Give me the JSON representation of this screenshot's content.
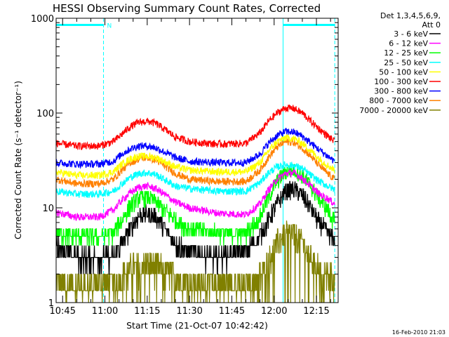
{
  "chart_data": {
    "type": "line",
    "title": "HESSI Observing Summary Count Rates, Corrected",
    "xlabel": "Start Time (21-Oct-07 10:42:42)",
    "ylabel": "Corrected Count Rate (s⁻¹ detector⁻¹)",
    "y_scale": "log",
    "ylim": [
      1,
      1000
    ],
    "xlim": [
      "10:42:42",
      "12:22:42"
    ],
    "x_ticks": [
      "10:45",
      "11:00",
      "11:15",
      "11:30",
      "11:45",
      "12:00",
      "12:15"
    ],
    "y_ticks": [
      "1",
      "10",
      "100",
      "1000"
    ],
    "grid": false,
    "legend_position": "right",
    "legend_header": [
      "Det 1,3,4,5,6,9,",
      "Att 0"
    ],
    "timestamp": "16-Feb-2010 21:03",
    "annotations": {
      "night_label": "N",
      "night_intervals": [
        [
          "10:42:42",
          "10:59:30"
        ],
        [
          "12:03:10",
          "12:21:30"
        ]
      ],
      "marker_times": [
        "10:42:42",
        "10:59:30",
        "12:03:10",
        "12:21:30"
      ],
      "bar_value": 850
    },
    "series": [
      {
        "name": "3 - 6 keV",
        "color": "#000000",
        "x": [
          "10:42:42",
          "10:50",
          "10:58",
          "11:03",
          "11:06",
          "11:09",
          "11:12",
          "11:15",
          "11:18",
          "11:21",
          "11:25",
          "11:30",
          "11:40",
          "11:50",
          "11:55",
          "11:58",
          "12:01",
          "12:04",
          "12:07",
          "12:10",
          "12:13",
          "12:16",
          "12:19",
          "12:21:30"
        ],
        "values": [
          4,
          3,
          3,
          3,
          4.2,
          6,
          8.3,
          8.8,
          8,
          6.2,
          4.3,
          3.4,
          3,
          3.5,
          5,
          7.5,
          11,
          15,
          16,
          13.5,
          10,
          7,
          5.5,
          4.5
        ]
      },
      {
        "name": "6 - 12 keV",
        "color": "#ff00ff",
        "x": [
          "10:42:42",
          "10:50",
          "10:58",
          "11:03",
          "11:06",
          "11:09",
          "11:12",
          "11:15",
          "11:18",
          "11:21",
          "11:25",
          "11:30",
          "11:40",
          "11:50",
          "11:55",
          "11:58",
          "12:01",
          "12:04",
          "12:07",
          "12:10",
          "12:13",
          "12:16",
          "12:19",
          "12:21:30"
        ],
        "values": [
          9,
          8,
          8,
          9.5,
          12,
          14.5,
          16.5,
          17,
          16,
          14,
          11.5,
          10,
          8.8,
          8.5,
          11,
          15.5,
          20,
          23,
          23.5,
          20.5,
          17,
          14,
          12.5,
          11
        ]
      },
      {
        "name": "12 - 25 keV",
        "color": "#00ff00",
        "x": [
          "10:42:42",
          "10:50",
          "10:58",
          "11:03",
          "11:06",
          "11:09",
          "11:12",
          "11:15",
          "11:18",
          "11:21",
          "11:25",
          "11:30",
          "11:40",
          "11:50",
          "11:55",
          "11:58",
          "12:01",
          "12:04",
          "12:07",
          "12:10",
          "12:13",
          "12:16",
          "12:19",
          "12:21:30"
        ],
        "values": [
          5.5,
          5,
          5,
          5.5,
          7.5,
          10.5,
          12.8,
          13,
          11.8,
          9.5,
          7.5,
          6,
          5.5,
          5.3,
          8,
          13,
          19,
          24,
          25,
          22,
          17,
          12.5,
          9.5,
          7
        ]
      },
      {
        "name": "25 - 50 keV",
        "color": "#00ffff",
        "x": [
          "10:42:42",
          "10:50",
          "10:58",
          "11:03",
          "11:06",
          "11:09",
          "11:12",
          "11:15",
          "11:18",
          "11:21",
          "11:25",
          "11:30",
          "11:40",
          "11:50",
          "11:55",
          "11:58",
          "12:01",
          "12:04",
          "12:07",
          "12:10",
          "12:13",
          "12:16",
          "12:19",
          "12:21:30"
        ],
        "values": [
          15,
          14,
          14,
          15,
          18,
          21,
          23,
          23.5,
          22.5,
          20,
          17,
          16,
          15,
          15,
          18.5,
          23.5,
          27,
          28.5,
          28,
          26,
          22,
          19,
          17,
          15.5
        ]
      },
      {
        "name": "50 - 100 keV",
        "color": "#ffff00",
        "x": [
          "10:42:42",
          "10:50",
          "10:58",
          "11:03",
          "11:06",
          "11:09",
          "11:12",
          "11:15",
          "11:18",
          "11:21",
          "11:25",
          "11:30",
          "11:40",
          "11:50",
          "11:55",
          "11:58",
          "12:01",
          "12:04",
          "12:07",
          "12:10",
          "12:13",
          "12:16",
          "12:19",
          "12:21:30"
        ],
        "values": [
          24,
          22,
          22,
          24,
          29,
          33,
          35,
          35,
          34,
          31,
          27,
          25,
          24,
          24,
          30,
          40,
          50,
          55,
          54,
          48,
          40,
          33,
          28,
          25
        ]
      },
      {
        "name": "100 - 300 keV",
        "color": "#ff0000",
        "x": [
          "10:42:42",
          "10:50",
          "10:58",
          "11:03",
          "11:06",
          "11:09",
          "11:12",
          "11:15",
          "11:18",
          "11:21",
          "11:25",
          "11:30",
          "11:40",
          "11:50",
          "11:55",
          "11:58",
          "12:01",
          "12:04",
          "12:07",
          "12:10",
          "12:13",
          "12:16",
          "12:19",
          "12:21:30"
        ],
        "values": [
          48,
          45,
          45,
          50,
          60,
          72,
          80,
          82,
          78,
          68,
          56,
          50,
          47,
          48,
          62,
          82,
          100,
          113,
          112,
          100,
          82,
          68,
          57,
          50
        ]
      },
      {
        "name": "300 - 800 keV",
        "color": "#0000ff",
        "x": [
          "10:42:42",
          "10:50",
          "10:58",
          "11:03",
          "11:06",
          "11:09",
          "11:12",
          "11:15",
          "11:18",
          "11:21",
          "11:25",
          "11:30",
          "11:40",
          "11:50",
          "11:55",
          "11:58",
          "12:01",
          "12:04",
          "12:07",
          "12:10",
          "12:13",
          "12:16",
          "12:19",
          "12:21:30"
        ],
        "values": [
          30,
          29,
          29,
          31,
          37,
          42,
          45,
          45,
          43,
          39,
          34,
          31,
          30,
          30,
          37,
          48,
          58,
          64,
          63,
          57,
          48,
          41,
          35,
          31
        ]
      },
      {
        "name": "800 - 7000 keV",
        "color": "#ff8000",
        "x": [
          "10:42:42",
          "10:50",
          "10:58",
          "11:03",
          "11:06",
          "11:09",
          "11:12",
          "11:15",
          "11:18",
          "11:21",
          "11:25",
          "11:30",
          "11:40",
          "11:50",
          "11:55",
          "11:58",
          "12:01",
          "12:04",
          "12:07",
          "12:10",
          "12:13",
          "12:16",
          "12:19",
          "12:21:30"
        ],
        "values": [
          20,
          18,
          18,
          20,
          25,
          30,
          33,
          34,
          32,
          28,
          23,
          20,
          19,
          19,
          25,
          34,
          44,
          50,
          49,
          43,
          35,
          28,
          23,
          20
        ]
      },
      {
        "name": "7000 - 20000 keV",
        "color": "#808000",
        "x": [
          "10:42:42",
          "10:50",
          "10:58",
          "11:03",
          "11:06",
          "11:09",
          "11:12",
          "11:15",
          "11:18",
          "11:21",
          "11:25",
          "11:30",
          "11:40",
          "11:50",
          "11:55",
          "11:58",
          "12:01",
          "12:04",
          "12:07",
          "12:10",
          "12:13",
          "12:16",
          "12:19",
          "12:21:30"
        ],
        "values": [
          1.6,
          1.5,
          1.6,
          1.7,
          1.9,
          2.3,
          2.5,
          2.6,
          2.5,
          2.2,
          1.9,
          1.7,
          1.6,
          1.6,
          1.9,
          2.8,
          4.2,
          5.5,
          5.3,
          4.3,
          3.1,
          2.3,
          1.9,
          1.7
        ]
      }
    ]
  }
}
